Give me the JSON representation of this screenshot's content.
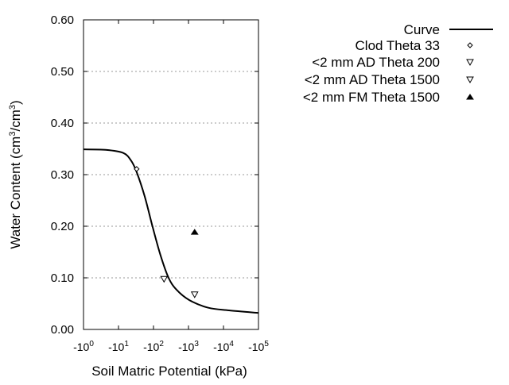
{
  "chart_data": {
    "type": "line",
    "title": "",
    "xlabel": "Soil Matric Potential (kPa)",
    "ylabel_parts": [
      "Water Content (cm",
      "3",
      "/cm",
      "3",
      ")"
    ],
    "x_scale": "log (negative)",
    "xlim": [
      -1,
      -100000
    ],
    "ylim": [
      0,
      0.6
    ],
    "x_ticks": [
      {
        "base": "-10",
        "exp": "0",
        "value": -1
      },
      {
        "base": "-10",
        "exp": "1",
        "value": -10
      },
      {
        "base": "-10",
        "exp": "2",
        "value": -100
      },
      {
        "base": "-10",
        "exp": "3",
        "value": -1000
      },
      {
        "base": "-10",
        "exp": "4",
        "value": -10000
      },
      {
        "base": "-10",
        "exp": "5",
        "value": -100000
      }
    ],
    "y_ticks": [
      "0.00",
      "0.10",
      "0.20",
      "0.30",
      "0.40",
      "0.50",
      "0.60"
    ],
    "grid": "horizontal dotted",
    "legend_position": "right",
    "series": [
      {
        "name": "Curve",
        "kind": "line",
        "color": "#000000",
        "points": [
          [
            -1,
            0.349
          ],
          [
            -4.3,
            0.348
          ],
          [
            -13.7,
            0.342
          ],
          [
            -23,
            0.327
          ],
          [
            -33,
            0.305
          ],
          [
            -56,
            0.258
          ],
          [
            -95,
            0.198
          ],
          [
            -160,
            0.143
          ],
          [
            -270,
            0.1
          ],
          [
            -455,
            0.077
          ],
          [
            -1050,
            0.057
          ],
          [
            -3700,
            0.042
          ],
          [
            -14400,
            0.037
          ],
          [
            -100000,
            0.032
          ]
        ]
      },
      {
        "name": "Clod Theta 33",
        "kind": "marker",
        "marker": "diamond-open",
        "points": [
          [
            -33,
            0.311
          ]
        ]
      },
      {
        "name": "<2 mm AD Theta 200",
        "kind": "marker",
        "marker": "triangle-down-open",
        "points": [
          [
            -200,
            0.098
          ]
        ]
      },
      {
        "name": "<2 mm AD Theta 1500",
        "kind": "marker",
        "marker": "triangle-down-open",
        "points": [
          [
            -1500,
            0.068
          ]
        ]
      },
      {
        "name": "<2 mm FM Theta 1500",
        "kind": "marker",
        "marker": "triangle-up-filled",
        "points": [
          [
            -1500,
            0.189
          ]
        ]
      }
    ]
  }
}
